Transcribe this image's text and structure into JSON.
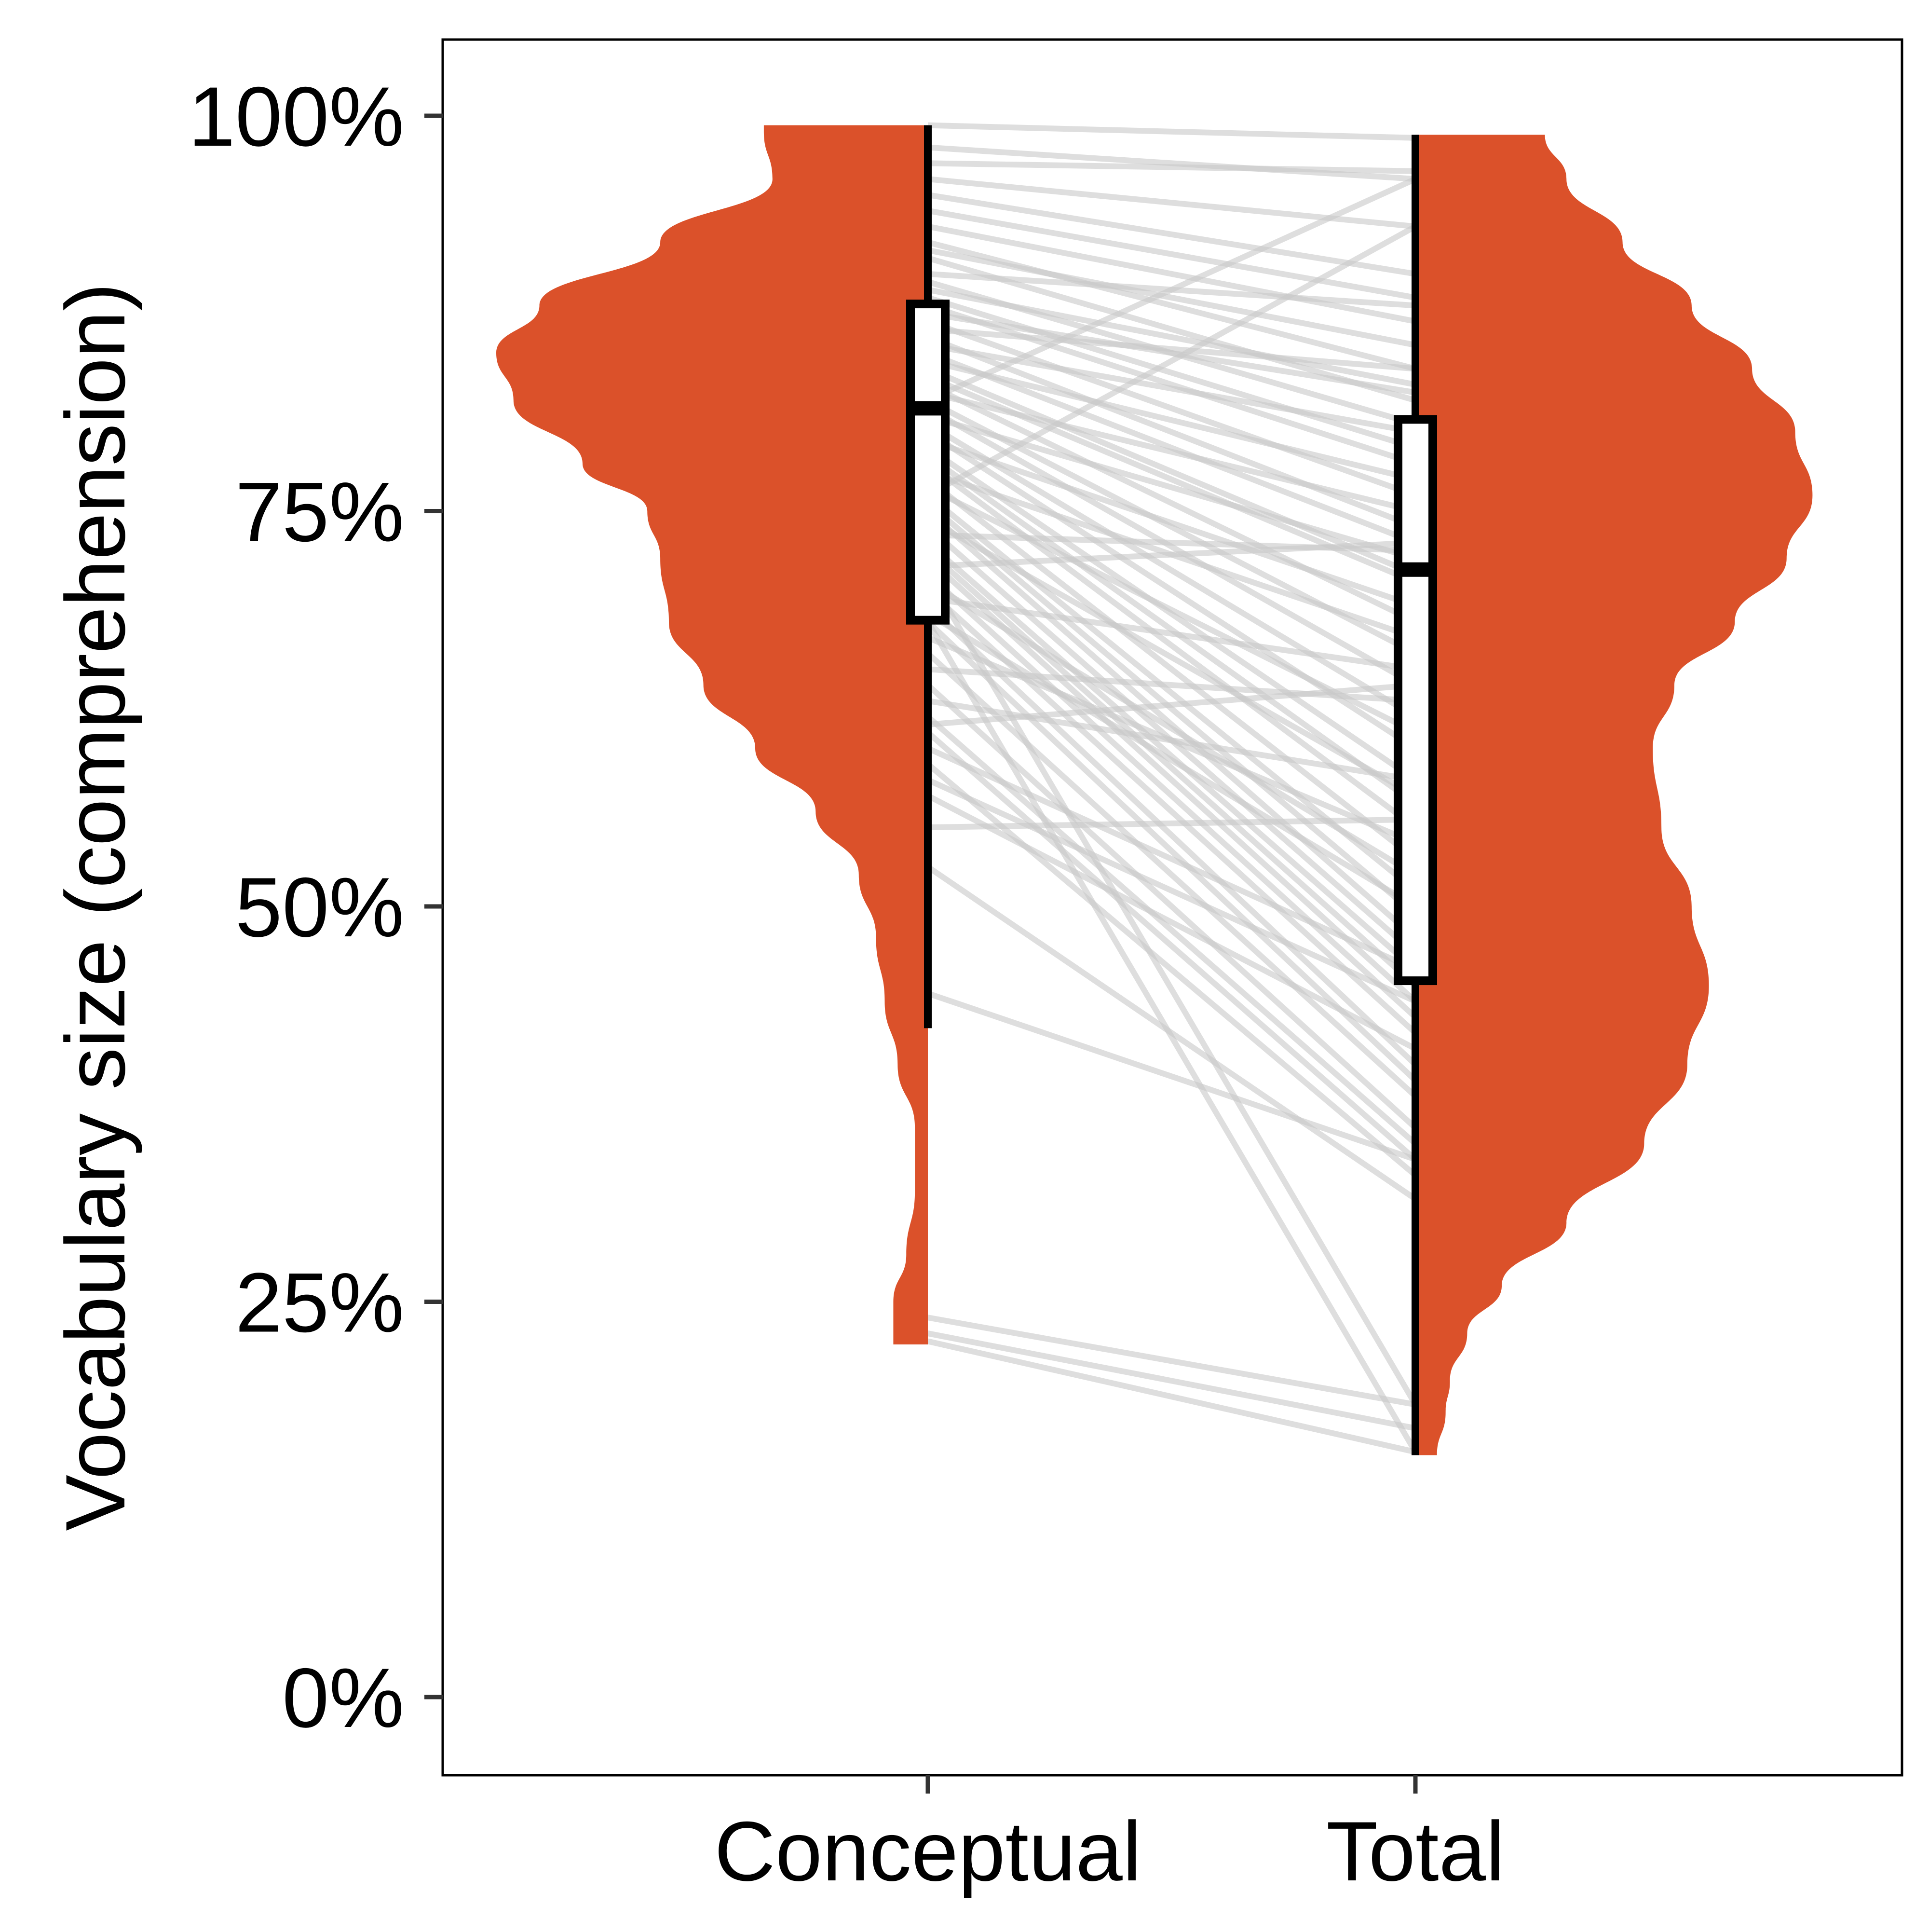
{
  "chart_data": {
    "type": "violin",
    "ylabel": "Vocabulary size (comprehension)",
    "xlabel": "",
    "categories": [
      "Conceptual",
      "Total"
    ],
    "y_ticks": [
      "0%",
      "25%",
      "50%",
      "75%",
      "100%"
    ],
    "y_tick_values": [
      0,
      25,
      50,
      75,
      100
    ],
    "ylim": [
      -5,
      105
    ],
    "fill_color": "#db512a",
    "line_color": "#c8c8c8",
    "box_fill": "#ffffff",
    "box_stroke": "#000000",
    "grid": false,
    "legend": "none",
    "violins": [
      {
        "category": "Conceptual",
        "side": "left",
        "min": 22.3,
        "max": 99.4,
        "profile": [
          [
            22.3,
            0.08
          ],
          [
            25,
            0.08
          ],
          [
            28,
            0.05
          ],
          [
            32,
            0.03
          ],
          [
            36,
            0.03
          ],
          [
            40,
            0.07
          ],
          [
            44,
            0.1
          ],
          [
            48,
            0.12
          ],
          [
            52,
            0.16
          ],
          [
            56,
            0.26
          ],
          [
            60,
            0.4
          ],
          [
            64,
            0.52
          ],
          [
            68,
            0.6
          ],
          [
            72,
            0.62
          ],
          [
            75,
            0.65
          ],
          [
            78,
            0.8
          ],
          [
            82,
            0.96
          ],
          [
            85,
            1.0
          ],
          [
            88,
            0.9
          ],
          [
            92,
            0.62
          ],
          [
            96,
            0.36
          ],
          [
            99,
            0.38
          ],
          [
            99.4,
            0.38
          ]
        ]
      },
      {
        "category": "Total",
        "side": "right",
        "min": 15.3,
        "max": 98.8,
        "profile": [
          [
            15.3,
            0.05
          ],
          [
            18,
            0.07
          ],
          [
            20,
            0.08
          ],
          [
            23,
            0.12
          ],
          [
            26,
            0.2
          ],
          [
            30,
            0.35
          ],
          [
            35,
            0.53
          ],
          [
            40,
            0.63
          ],
          [
            45,
            0.68
          ],
          [
            50,
            0.64
          ],
          [
            55,
            0.57
          ],
          [
            60,
            0.55
          ],
          [
            64,
            0.6
          ],
          [
            68,
            0.74
          ],
          [
            72,
            0.86
          ],
          [
            76,
            0.92
          ],
          [
            80,
            0.88
          ],
          [
            84,
            0.78
          ],
          [
            88,
            0.64
          ],
          [
            92,
            0.48
          ],
          [
            96,
            0.35
          ],
          [
            98.8,
            0.3
          ]
        ]
      }
    ],
    "boxes": [
      {
        "category": "Conceptual",
        "whisker_low": 42.3,
        "q1": 68.1,
        "median": 81.5,
        "q3": 88.1,
        "whisker_high": 99.4
      },
      {
        "category": "Total",
        "whisker_low": 15.3,
        "q1": 45.3,
        "median": 71.3,
        "q3": 80.8,
        "whisker_high": 98.8
      }
    ],
    "paired_lines": [
      [
        99.4,
        98.6
      ],
      [
        98.0,
        96.0
      ],
      [
        97.0,
        96.5
      ],
      [
        96.0,
        93.0
      ],
      [
        95.0,
        90.0
      ],
      [
        94.0,
        88.5
      ],
      [
        93.0,
        87.0
      ],
      [
        92.0,
        84.0
      ],
      [
        91.5,
        85.5
      ],
      [
        91.0,
        82.0
      ],
      [
        90.0,
        88.0
      ],
      [
        89.5,
        80.5
      ],
      [
        89.0,
        83.0
      ],
      [
        88.5,
        79.0
      ],
      [
        88.0,
        78.0
      ],
      [
        87.5,
        82.5
      ],
      [
        87.0,
        76.0
      ],
      [
        86.5,
        84.0
      ],
      [
        86.0,
        74.0
      ],
      [
        85.5,
        80.0
      ],
      [
        85.0,
        73.0
      ],
      [
        84.5,
        77.0
      ],
      [
        84.0,
        71.0
      ],
      [
        83.5,
        70.5
      ],
      [
        83.0,
        68.0
      ],
      [
        82.5,
        75.0
      ],
      [
        82.0,
        66.0
      ],
      [
        81.5,
        64.0
      ],
      [
        81.0,
        72.0
      ],
      [
        80.5,
        62.0
      ],
      [
        80.0,
        60.0
      ],
      [
        79.5,
        69.0
      ],
      [
        79.0,
        58.0
      ],
      [
        78.5,
        56.5
      ],
      [
        78.0,
        55.0
      ],
      [
        77.5,
        67.0
      ],
      [
        77.0,
        53.0
      ],
      [
        76.5,
        61.0
      ],
      [
        76.0,
        51.0
      ],
      [
        75.5,
        49.5
      ],
      [
        75.0,
        48.0
      ],
      [
        74.5,
        57.0
      ],
      [
        74.0,
        47.0
      ],
      [
        73.5,
        72.5
      ],
      [
        73.0,
        46.0
      ],
      [
        72.5,
        45.0
      ],
      [
        72.0,
        44.0
      ],
      [
        71.5,
        73.0
      ],
      [
        71.0,
        43.0
      ],
      [
        70.5,
        52.0
      ],
      [
        70.0,
        42.0
      ],
      [
        69.5,
        65.0
      ],
      [
        69.0,
        40.0
      ],
      [
        68.5,
        50.0
      ],
      [
        68.0,
        39.0
      ],
      [
        67.0,
        54.0
      ],
      [
        66.0,
        38.0
      ],
      [
        65.0,
        63.0
      ],
      [
        64.0,
        36.0
      ],
      [
        63.0,
        58.0
      ],
      [
        62.0,
        35.0
      ],
      [
        61.5,
        64.0
      ],
      [
        61.0,
        34.0
      ],
      [
        60.0,
        46.0
      ],
      [
        59.0,
        33.0
      ],
      [
        58.0,
        44.0
      ],
      [
        57.0,
        41.0
      ],
      [
        55.0,
        55.5
      ],
      [
        52.5,
        31.5
      ],
      [
        44.5,
        34.0
      ],
      [
        82.0,
        96.0
      ],
      [
        76.0,
        93.0
      ],
      [
        71.0,
        18.5
      ],
      [
        68.0,
        15.5
      ],
      [
        24.0,
        18.5
      ],
      [
        23.0,
        17.0
      ],
      [
        22.5,
        15.5
      ]
    ]
  }
}
